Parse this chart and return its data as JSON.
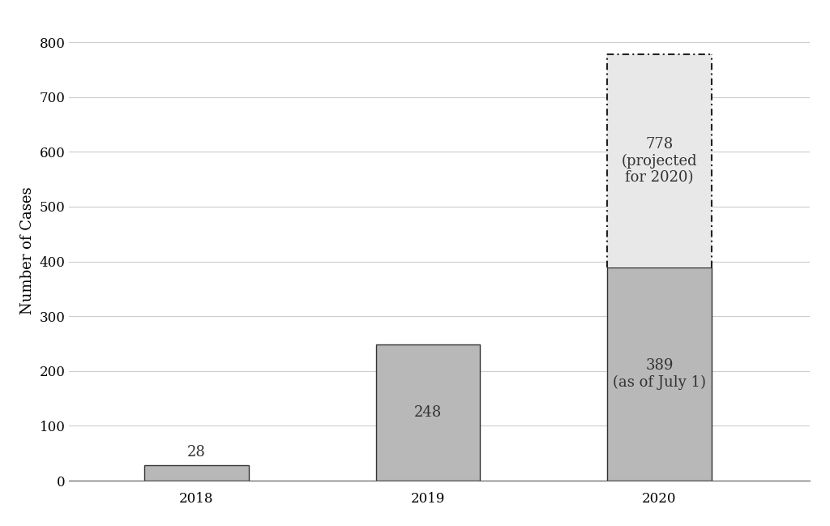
{
  "categories": [
    "2018",
    "2019",
    "2020"
  ],
  "actual_values": [
    28,
    248,
    389
  ],
  "projected_value": 778,
  "actual_color": "#b8b8b8",
  "projected_color": "#e8e8e8",
  "bar_edge_color": "#333333",
  "projected_edge_color": "#222222",
  "ylabel": "Number of Cases",
  "ylim": [
    0,
    840
  ],
  "yticks": [
    0,
    100,
    200,
    300,
    400,
    500,
    600,
    700,
    800
  ],
  "background_color": "#ffffff",
  "label_28": "28",
  "label_248": "248",
  "label_389": "389\n(as of July 1)",
  "label_778": "778\n(projected\nfor 2020)",
  "bar_width": 0.45,
  "font_size_labels": 13,
  "font_size_axis": 13,
  "font_size_ticks": 12
}
